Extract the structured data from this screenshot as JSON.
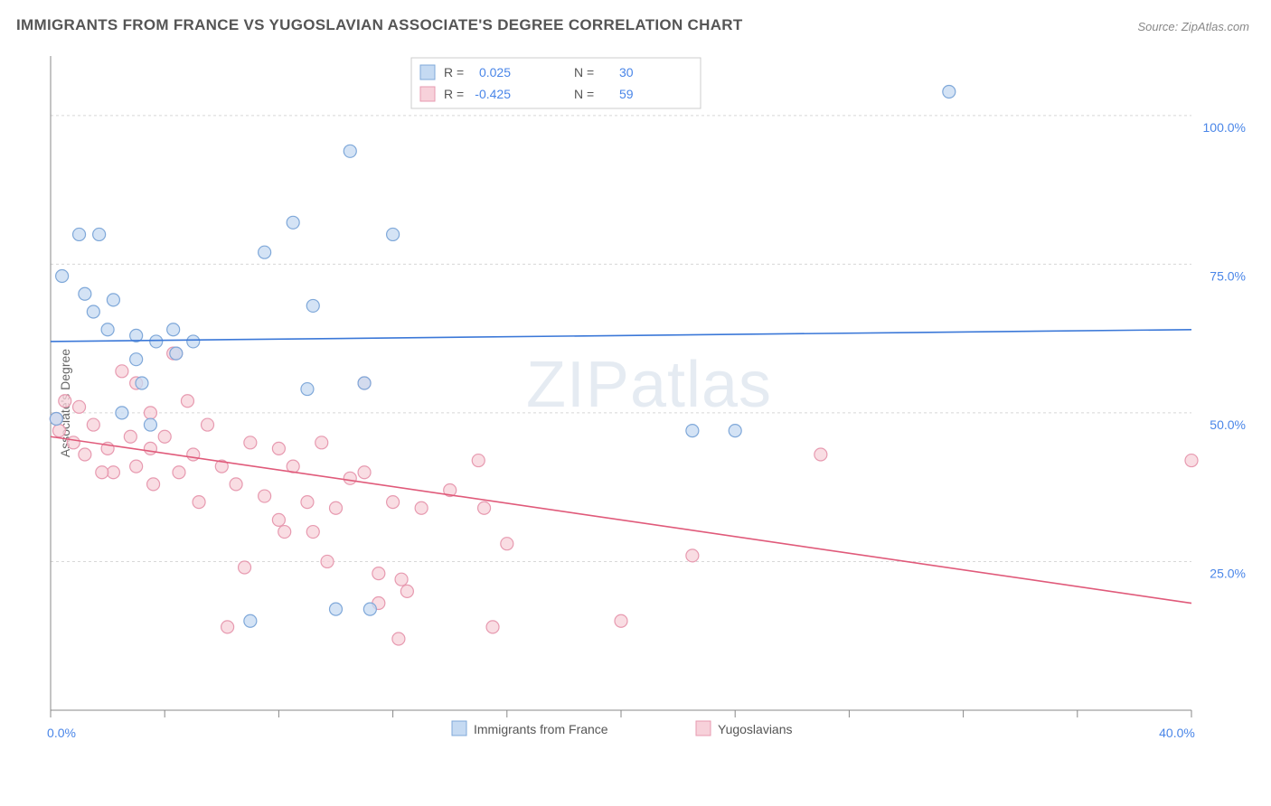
{
  "title": "IMMIGRANTS FROM FRANCE VS YUGOSLAVIAN ASSOCIATE'S DEGREE CORRELATION CHART",
  "source": "Source: ZipAtlas.com",
  "ylabel": "Associate's Degree",
  "watermark_a": "ZIP",
  "watermark_b": "atlas",
  "chart": {
    "type": "scatter",
    "xlim": [
      0,
      40
    ],
    "ylim": [
      0,
      110
    ],
    "x_ticks": [
      0,
      4,
      8,
      12,
      16,
      20,
      24,
      28,
      32,
      36,
      40
    ],
    "x_tick_labels_shown": {
      "0": "0.0%",
      "40": "40.0%"
    },
    "y_gridlines": [
      25,
      50,
      75,
      100
    ],
    "y_tick_labels": {
      "25": "25.0%",
      "50": "50.0%",
      "75": "75.0%",
      "100": "100.0%"
    },
    "grid_color": "#d8d8d8",
    "axis_color": "#888888",
    "background_color": "#ffffff",
    "marker_radius": 7,
    "marker_stroke_width": 1.2,
    "line_width": 1.6,
    "series": [
      {
        "name": "Immigrants from France",
        "fill": "#c5daf2",
        "stroke": "#7fa8d9",
        "line_color": "#3b78d8",
        "r": "0.025",
        "n": "30",
        "trend": {
          "x1": 0,
          "y1": 62,
          "x2": 40,
          "y2": 64
        },
        "points": [
          [
            0.4,
            73
          ],
          [
            1.0,
            80
          ],
          [
            1.2,
            70
          ],
          [
            1.5,
            67
          ],
          [
            1.7,
            80
          ],
          [
            2.0,
            64
          ],
          [
            2.2,
            69
          ],
          [
            2.5,
            50
          ],
          [
            3.0,
            59
          ],
          [
            3.0,
            63
          ],
          [
            3.2,
            55
          ],
          [
            3.5,
            48
          ],
          [
            3.7,
            62
          ],
          [
            4.3,
            64
          ],
          [
            4.4,
            60
          ],
          [
            5.0,
            62
          ],
          [
            7.0,
            15
          ],
          [
            7.5,
            77
          ],
          [
            8.5,
            82
          ],
          [
            9.0,
            54
          ],
          [
            9.2,
            68
          ],
          [
            10.0,
            17
          ],
          [
            10.5,
            94
          ],
          [
            11.0,
            55
          ],
          [
            11.2,
            17
          ],
          [
            12.0,
            80
          ],
          [
            22.5,
            47
          ],
          [
            24.0,
            47
          ],
          [
            31.5,
            104
          ],
          [
            0.2,
            49
          ]
        ]
      },
      {
        "name": "Yugoslavians",
        "fill": "#f7d1da",
        "stroke": "#e79ab0",
        "line_color": "#e05a7a",
        "r": "-0.425",
        "n": "59",
        "trend": {
          "x1": 0,
          "y1": 46,
          "x2": 40,
          "y2": 18
        },
        "points": [
          [
            0.2,
            49
          ],
          [
            0.3,
            47
          ],
          [
            0.5,
            52
          ],
          [
            0.8,
            45
          ],
          [
            1.0,
            51
          ],
          [
            1.2,
            43
          ],
          [
            1.5,
            48
          ],
          [
            2.0,
            44
          ],
          [
            2.2,
            40
          ],
          [
            2.5,
            57
          ],
          [
            2.8,
            46
          ],
          [
            3.0,
            41
          ],
          [
            3.5,
            50
          ],
          [
            3.5,
            44
          ],
          [
            3.6,
            38
          ],
          [
            4.0,
            46
          ],
          [
            4.3,
            60
          ],
          [
            4.4,
            60
          ],
          [
            4.5,
            40
          ],
          [
            5.0,
            43
          ],
          [
            5.2,
            35
          ],
          [
            5.5,
            48
          ],
          [
            6.0,
            41
          ],
          [
            6.2,
            14
          ],
          [
            6.5,
            38
          ],
          [
            6.8,
            24
          ],
          [
            7.0,
            45
          ],
          [
            7.5,
            36
          ],
          [
            8.0,
            44
          ],
          [
            8.0,
            32
          ],
          [
            8.2,
            30
          ],
          [
            8.5,
            41
          ],
          [
            9.0,
            35
          ],
          [
            9.2,
            30
          ],
          [
            9.5,
            45
          ],
          [
            9.7,
            25
          ],
          [
            10.0,
            34
          ],
          [
            10.5,
            39
          ],
          [
            11.0,
            40
          ],
          [
            11.0,
            55
          ],
          [
            11.5,
            23
          ],
          [
            11.5,
            18
          ],
          [
            12.0,
            35
          ],
          [
            12.2,
            12
          ],
          [
            12.3,
            22
          ],
          [
            12.5,
            20
          ],
          [
            13.0,
            34
          ],
          [
            14.0,
            37
          ],
          [
            15.0,
            42
          ],
          [
            15.2,
            34
          ],
          [
            15.5,
            14
          ],
          [
            16.0,
            28
          ],
          [
            20.0,
            15
          ],
          [
            22.5,
            26
          ],
          [
            27.0,
            43
          ],
          [
            40.0,
            42
          ],
          [
            3.0,
            55
          ],
          [
            1.8,
            40
          ],
          [
            4.8,
            52
          ]
        ]
      }
    ]
  },
  "legend_top": {
    "r_label": "R =",
    "n_label": "N ="
  },
  "legend_bottom": {
    "s1": "Immigrants from France",
    "s2": "Yugoslavians"
  }
}
